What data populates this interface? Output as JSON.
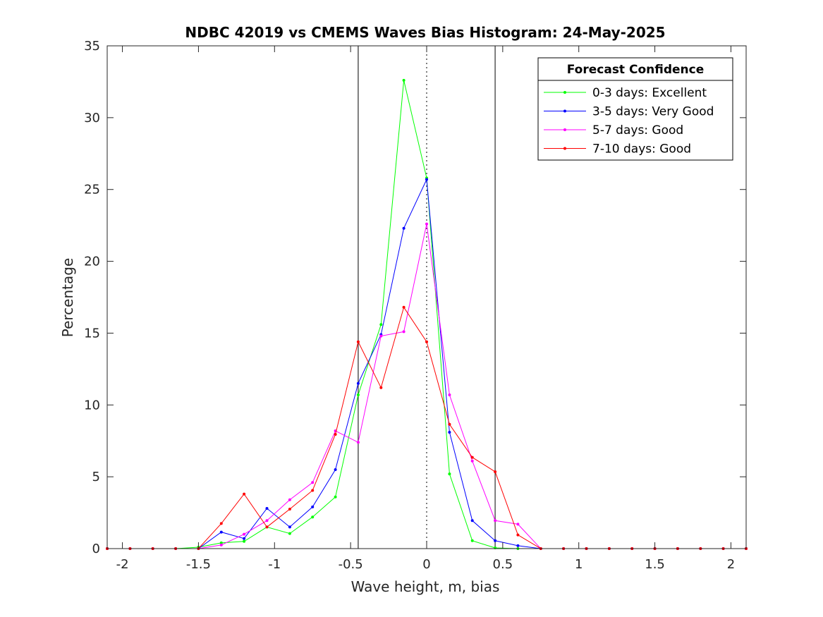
{
  "chart_data": {
    "type": "line",
    "title": "NDBC 42019 vs CMEMS Waves Bias Histogram: 24-May-2025",
    "xlabel": "Wave height, m, bias",
    "ylabel": "Percentage",
    "xlim": [
      -2.1,
      2.1
    ],
    "ylim": [
      0,
      35
    ],
    "xticks": [
      -2,
      -1.5,
      -1,
      -0.5,
      0,
      0.5,
      1,
      1.5,
      2
    ],
    "xtick_labels": [
      "-2",
      "-1.5",
      "-1",
      "-0.5",
      "0",
      "0.5",
      "1",
      "1.5",
      "2"
    ],
    "yticks": [
      0,
      5,
      10,
      15,
      20,
      25,
      30,
      35
    ],
    "ytick_labels": [
      "0",
      "5",
      "10",
      "15",
      "20",
      "25",
      "30",
      "35"
    ],
    "reference_lines": {
      "solid": [
        -0.45,
        0.45
      ],
      "dotted": [
        0
      ]
    },
    "grid": false,
    "legend": {
      "title": "Forecast Confidence",
      "position": "top-right"
    },
    "x": [
      -2.1,
      -1.95,
      -1.8,
      -1.65,
      -1.5,
      -1.35,
      -1.2,
      -1.05,
      -0.9,
      -0.75,
      -0.6,
      -0.45,
      -0.3,
      -0.15,
      0,
      0.15,
      0.3,
      0.45,
      0.6,
      0.75,
      0.9,
      1.05,
      1.2,
      1.35,
      1.5,
      1.65,
      1.8,
      1.95,
      2.1
    ],
    "series": [
      {
        "name": "0-3 days: Excellent",
        "color": "#00ff00",
        "values": [
          0,
          0,
          0,
          0,
          0.1,
          0.4,
          0.5,
          1.5,
          1.05,
          2.2,
          3.6,
          10.7,
          15.6,
          32.6,
          25.8,
          5.2,
          0.55,
          0.05,
          0,
          0,
          0,
          0,
          0,
          0,
          0,
          0,
          0,
          0,
          0
        ]
      },
      {
        "name": "3-5 days: Very Good",
        "color": "#0000ff",
        "values": [
          0,
          0,
          0,
          0,
          0,
          1.15,
          0.7,
          2.8,
          1.5,
          2.9,
          5.5,
          11.5,
          14.9,
          22.3,
          25.7,
          8.1,
          1.95,
          0.55,
          0.2,
          0,
          0,
          0,
          0,
          0,
          0,
          0,
          0,
          0,
          0
        ]
      },
      {
        "name": "5-7 days: Good",
        "color": "#ff00ff",
        "values": [
          0,
          0,
          0,
          0,
          0,
          0.25,
          1.0,
          1.95,
          3.4,
          4.6,
          8.2,
          7.4,
          14.8,
          15.1,
          22.6,
          10.7,
          6.1,
          1.95,
          1.7,
          0,
          0,
          0,
          0,
          0,
          0,
          0,
          0,
          0,
          0
        ]
      },
      {
        "name": "7-10 days: Good",
        "color": "#ff0000",
        "values": [
          0,
          0,
          0,
          0,
          0,
          1.75,
          3.8,
          1.5,
          2.75,
          4.05,
          7.95,
          14.4,
          11.2,
          16.8,
          14.4,
          8.65,
          6.35,
          5.35,
          0.95,
          0,
          0,
          0,
          0,
          0,
          0,
          0,
          0,
          0,
          0
        ]
      }
    ]
  }
}
